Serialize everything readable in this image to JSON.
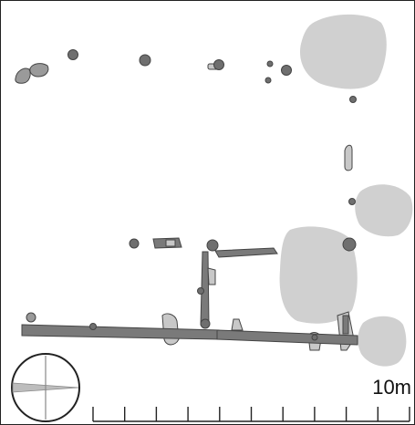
{
  "plan": {
    "scale_bar": {
      "label": "10m",
      "length_m": 10,
      "divisions": 10
    },
    "north_arrow": {
      "icon": "compass-north-arrow-icon"
    },
    "colors": {
      "background": "#ffffff",
      "post_hole_fill": "#6f6f6f",
      "post_hole_stroke": "#444444",
      "pit_fill": "#d0d0d0",
      "beam_fill": "#7a7a7a",
      "light_feature_fill": "#c8c8c8",
      "outline": "#222222"
    }
  }
}
